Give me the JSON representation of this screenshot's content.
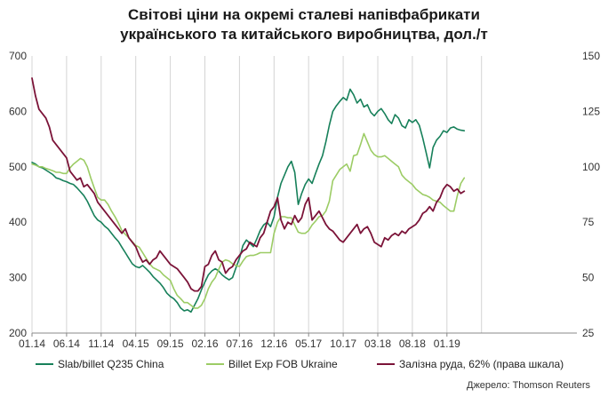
{
  "title": {
    "line1": "Світові ціни на окремі сталеві напівфабрикати",
    "line2": "українського та китайського виробництва, дол./т"
  },
  "source": "Джерело: Thomson Reuters",
  "colors": {
    "china": "#17805a",
    "ukraine": "#9ccc65",
    "ore": "#7b1338",
    "grid": "#d4d4d4"
  },
  "chart_data": {
    "type": "line",
    "title": "Світові ціни на окремі сталеві напівфабрикати українського та китайського виробництва, дол./т",
    "x_categories": [
      "01.14",
      "06.14",
      "11.14",
      "04.15",
      "09.15",
      "02.16",
      "07.16",
      "12.16",
      "05.17",
      "10.17",
      "03.18",
      "08.18",
      "01.19"
    ],
    "y_left": {
      "min": 200,
      "max": 700,
      "ticks": [
        "200",
        "300",
        "400",
        "500",
        "600",
        "700"
      ]
    },
    "y_right": {
      "min": 25,
      "max": 150,
      "ticks": [
        "25",
        "50",
        "75",
        "100",
        "125",
        "150"
      ]
    },
    "grid": "vertical",
    "legend_position": "bottom",
    "series": [
      {
        "name": "Slab/billet Q235 China",
        "axis": "left",
        "x": [
          0,
          0.1,
          0.2,
          0.3,
          0.4,
          0.5,
          0.6,
          0.7,
          0.8,
          0.9,
          1.0,
          1.1,
          1.2,
          1.3,
          1.4,
          1.5,
          1.6,
          1.7,
          1.8,
          1.9,
          2.0,
          2.1,
          2.2,
          2.3,
          2.4,
          2.5,
          2.6,
          2.7,
          2.8,
          2.9,
          3.0,
          3.1,
          3.2,
          3.3,
          3.4,
          3.5,
          3.6,
          3.7,
          3.8,
          3.9,
          4.0,
          4.1,
          4.2,
          4.3,
          4.4,
          4.5,
          4.6,
          4.7,
          4.8,
          4.9,
          5.0,
          5.1,
          5.2,
          5.3,
          5.4,
          5.5,
          5.6,
          5.7,
          5.8,
          5.9,
          6.0,
          6.1,
          6.2,
          6.3,
          6.4,
          6.5,
          6.6,
          6.7,
          6.8,
          6.9,
          7.0,
          7.1,
          7.2,
          7.3,
          7.4,
          7.5,
          7.6,
          7.7,
          7.8,
          7.9,
          8.0,
          8.1,
          8.2,
          8.3,
          8.4,
          8.5,
          8.6,
          8.7,
          8.8,
          8.9,
          9.0,
          9.1,
          9.2,
          9.3,
          9.4,
          9.5,
          9.6,
          9.7,
          9.8,
          9.9,
          10.0,
          10.1,
          10.2,
          10.3,
          10.4,
          10.5,
          10.6,
          10.7,
          10.8,
          10.9,
          11.0,
          11.1,
          11.2,
          11.3,
          11.4,
          11.5,
          11.6,
          11.7,
          11.8,
          11.9,
          12.0,
          12.1,
          12.2,
          12.3,
          12.4,
          12.5
        ],
        "values": [
          508,
          505,
          500,
          498,
          494,
          490,
          486,
          480,
          478,
          475,
          473,
          470,
          468,
          462,
          455,
          448,
          438,
          425,
          412,
          404,
          400,
          393,
          388,
          380,
          372,
          365,
          355,
          345,
          335,
          325,
          320,
          318,
          322,
          316,
          310,
          302,
          296,
          290,
          282,
          272,
          266,
          262,
          255,
          245,
          240,
          242,
          238,
          250,
          262,
          278,
          292,
          305,
          312,
          316,
          312,
          305,
          300,
          296,
          300,
          318,
          335,
          358,
          368,
          362,
          356,
          370,
          385,
          395,
          400,
          392,
          410,
          445,
          470,
          485,
          500,
          510,
          490,
          432,
          452,
          468,
          478,
          470,
          488,
          505,
          520,
          545,
          575,
          600,
          610,
          618,
          625,
          620,
          640,
          630,
          615,
          622,
          608,
          612,
          598,
          592,
          600,
          605,
          596,
          585,
          578,
          594,
          588,
          574,
          570,
          585,
          580,
          585,
          575,
          552,
          525,
          498,
          535,
          548,
          555,
          565,
          562,
          570,
          572,
          568,
          566,
          565
        ]
      },
      {
        "name": "Billet Exp FOB Ukraine",
        "axis": "left",
        "x": [
          0,
          0.1,
          0.2,
          0.3,
          0.4,
          0.5,
          0.6,
          0.7,
          0.8,
          0.9,
          1.0,
          1.1,
          1.2,
          1.3,
          1.4,
          1.5,
          1.6,
          1.7,
          1.8,
          1.9,
          2.0,
          2.1,
          2.2,
          2.3,
          2.4,
          2.5,
          2.6,
          2.7,
          2.8,
          2.9,
          3.0,
          3.1,
          3.2,
          3.3,
          3.4,
          3.5,
          3.6,
          3.7,
          3.8,
          3.9,
          4.0,
          4.1,
          4.2,
          4.3,
          4.4,
          4.5,
          4.6,
          4.7,
          4.8,
          4.9,
          5.0,
          5.1,
          5.2,
          5.3,
          5.4,
          5.5,
          5.6,
          5.7,
          5.8,
          5.9,
          6.0,
          6.1,
          6.2,
          6.3,
          6.4,
          6.5,
          6.6,
          6.7,
          6.8,
          6.9,
          7.0,
          7.1,
          7.2,
          7.3,
          7.4,
          7.5,
          7.6,
          7.7,
          7.8,
          7.9,
          8.0,
          8.1,
          8.2,
          8.3,
          8.4,
          8.5,
          8.6,
          8.7,
          8.8,
          8.9,
          9.0,
          9.1,
          9.2,
          9.3,
          9.4,
          9.5,
          9.6,
          9.7,
          9.8,
          9.9,
          10.0,
          10.1,
          10.2,
          10.3,
          10.4,
          10.5,
          10.6,
          10.7,
          10.8,
          10.9,
          11.0,
          11.1,
          11.2,
          11.3,
          11.4,
          11.5,
          11.6,
          11.7,
          11.8,
          11.9,
          12.0,
          12.1,
          12.2,
          12.3,
          12.4,
          12.5
        ],
        "values": [
          505,
          503,
          500,
          500,
          497,
          495,
          493,
          490,
          490,
          488,
          488,
          498,
          505,
          510,
          515,
          512,
          500,
          480,
          462,
          445,
          440,
          440,
          432,
          420,
          410,
          398,
          385,
          378,
          372,
          365,
          358,
          355,
          345,
          335,
          325,
          318,
          315,
          312,
          305,
          300,
          295,
          280,
          268,
          262,
          255,
          255,
          250,
          245,
          245,
          250,
          262,
          280,
          292,
          300,
          315,
          328,
          332,
          330,
          325,
          322,
          320,
          330,
          338,
          340,
          340,
          342,
          345,
          345,
          345,
          345,
          380,
          400,
          410,
          410,
          408,
          408,
          395,
          382,
          380,
          380,
          385,
          395,
          402,
          410,
          412,
          420,
          438,
          475,
          485,
          495,
          500,
          505,
          492,
          520,
          522,
          540,
          560,
          545,
          530,
          522,
          518,
          518,
          520,
          515,
          510,
          505,
          500,
          485,
          478,
          473,
          468,
          460,
          455,
          450,
          448,
          445,
          440,
          438,
          436,
          430,
          425,
          420,
          420,
          448,
          470,
          480
        ]
      },
      {
        "name": "Залізна руда, 62% (права шкала)",
        "axis": "right",
        "x": [
          0,
          0.1,
          0.2,
          0.3,
          0.4,
          0.5,
          0.6,
          0.7,
          0.8,
          0.9,
          1.0,
          1.1,
          1.2,
          1.3,
          1.4,
          1.5,
          1.6,
          1.7,
          1.8,
          1.9,
          2.0,
          2.1,
          2.2,
          2.3,
          2.4,
          2.5,
          2.6,
          2.7,
          2.8,
          2.9,
          3.0,
          3.1,
          3.2,
          3.3,
          3.4,
          3.5,
          3.6,
          3.7,
          3.8,
          3.9,
          4.0,
          4.1,
          4.2,
          4.3,
          4.4,
          4.5,
          4.6,
          4.7,
          4.8,
          4.9,
          5.0,
          5.1,
          5.2,
          5.3,
          5.4,
          5.5,
          5.6,
          5.7,
          5.8,
          5.9,
          6.0,
          6.1,
          6.2,
          6.3,
          6.4,
          6.5,
          6.6,
          6.7,
          6.8,
          6.9,
          7.0,
          7.1,
          7.2,
          7.3,
          7.4,
          7.5,
          7.6,
          7.7,
          7.8,
          7.9,
          8.0,
          8.1,
          8.2,
          8.3,
          8.4,
          8.5,
          8.6,
          8.7,
          8.8,
          8.9,
          9.0,
          9.1,
          9.2,
          9.3,
          9.4,
          9.5,
          9.6,
          9.7,
          9.8,
          9.9,
          10.0,
          10.1,
          10.2,
          10.3,
          10.4,
          10.5,
          10.6,
          10.7,
          10.8,
          10.9,
          11.0,
          11.1,
          11.2,
          11.3,
          11.4,
          11.5,
          11.6,
          11.7,
          11.8,
          11.9,
          12.0,
          12.1,
          12.2,
          12.3,
          12.4,
          12.5
        ],
        "values": [
          140,
          132,
          126,
          124,
          122,
          118,
          112,
          110,
          108,
          106,
          104,
          98,
          96,
          94,
          95,
          91,
          92,
          90,
          88,
          84,
          82,
          80,
          78,
          76,
          74,
          72,
          70,
          72,
          68,
          66,
          64,
          60,
          57,
          58,
          56,
          58,
          59,
          62,
          60,
          58,
          56,
          55,
          54,
          52,
          50,
          48,
          45,
          44,
          44,
          46,
          55,
          56,
          60,
          62,
          58,
          57,
          52,
          54,
          55,
          58,
          60,
          62,
          63,
          66,
          65,
          64,
          68,
          70,
          75,
          80,
          82,
          86,
          76,
          72,
          75,
          74,
          78,
          75,
          77,
          83,
          86,
          76,
          78,
          80,
          77,
          74,
          72,
          71,
          69,
          67,
          66,
          68,
          70,
          72,
          74,
          70,
          72,
          73,
          70,
          66,
          65,
          64,
          68,
          67,
          69,
          70,
          69,
          71,
          70,
          72,
          73,
          74,
          76,
          79,
          80,
          82,
          80,
          84,
          86,
          90,
          92,
          91,
          89,
          90,
          88,
          89
        ]
      }
    ]
  }
}
